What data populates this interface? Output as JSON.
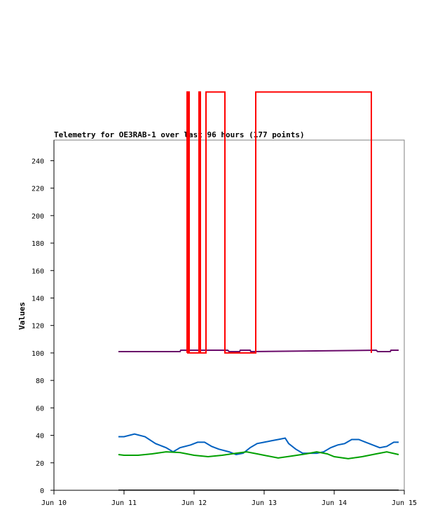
{
  "chart_data": {
    "type": "line",
    "title": "Telemetry for OE3RAB-1 over last 96 hours (177 points)",
    "xlabel": "",
    "ylabel": "Values",
    "xlim": [
      "Jun 10",
      "Jun 15"
    ],
    "ylim": [
      0,
      255
    ],
    "x_ticks": [
      "Jun 10",
      "Jun 11",
      "Jun 12",
      "Jun 13",
      "Jun 14",
      "Jun 15"
    ],
    "y_ticks": [
      0,
      20,
      40,
      60,
      80,
      100,
      120,
      140,
      160,
      180,
      200,
      220,
      240
    ],
    "grid": false,
    "legend": "none",
    "series": [
      {
        "color": "#6a0a6a",
        "x": [
          10.92,
          11.8,
          11.81,
          12.48,
          12.5,
          12.65,
          12.66,
          12.8,
          12.81,
          14.6,
          14.62,
          14.8,
          14.81,
          14.92
        ],
        "y": [
          101,
          101,
          102,
          102,
          101,
          101,
          102,
          102,
          101,
          102,
          101,
          101,
          102,
          102
        ]
      },
      {
        "color": "#0060c0",
        "x": [
          10.92,
          11.0,
          11.15,
          11.3,
          11.45,
          11.6,
          11.7,
          11.8,
          11.95,
          12.05,
          12.15,
          12.25,
          12.35,
          12.5,
          12.6,
          12.7,
          12.8,
          12.9,
          13.0,
          13.1,
          13.2,
          13.3,
          13.35,
          13.45,
          13.55,
          13.65,
          13.75,
          13.85,
          13.95,
          14.05,
          14.15,
          14.25,
          14.35,
          14.45,
          14.55,
          14.65,
          14.75,
          14.85,
          14.92
        ],
        "y": [
          39,
          39,
          41,
          39,
          34,
          31,
          28,
          31,
          33,
          35,
          35,
          32,
          30,
          28,
          26,
          27,
          31,
          34,
          35,
          36,
          37,
          38,
          34,
          30,
          27,
          27,
          27,
          28,
          31,
          33,
          34,
          37,
          37,
          35,
          33,
          31,
          32,
          35,
          35
        ]
      },
      {
        "color": "#00a000",
        "x": [
          10.92,
          11.0,
          11.2,
          11.4,
          11.6,
          11.8,
          12.0,
          12.2,
          12.4,
          12.6,
          12.75,
          12.9,
          13.0,
          13.2,
          13.4,
          13.6,
          13.75,
          13.9,
          14.0,
          14.2,
          14.4,
          14.6,
          14.75,
          14.92
        ],
        "y": [
          26,
          25.5,
          25.5,
          26.5,
          28,
          27.5,
          25.5,
          24.5,
          25.5,
          27,
          28,
          26.5,
          25.5,
          23.5,
          25,
          26.5,
          28,
          26.5,
          24.5,
          23,
          24.5,
          26.5,
          28,
          26
        ]
      },
      {
        "color": "#000000",
        "x": [
          10.92,
          14.92
        ],
        "y": [
          0,
          0
        ]
      },
      {
        "color": "#ff0000",
        "x": [
          11.9,
          11.9,
          11.91,
          11.91,
          11.92,
          11.92,
          11.93,
          11.93,
          11.95,
          11.95,
          12.07,
          12.07,
          12.09,
          12.09,
          12.17,
          12.17,
          12.44,
          12.44,
          12.88,
          12.88,
          14.53,
          14.53
        ],
        "y": [
          100,
          290,
          290,
          100,
          100,
          290,
          290,
          100,
          100,
          100,
          100,
          290,
          290,
          100,
          100,
          290,
          290,
          100,
          100,
          290,
          290,
          100
        ]
      }
    ]
  }
}
